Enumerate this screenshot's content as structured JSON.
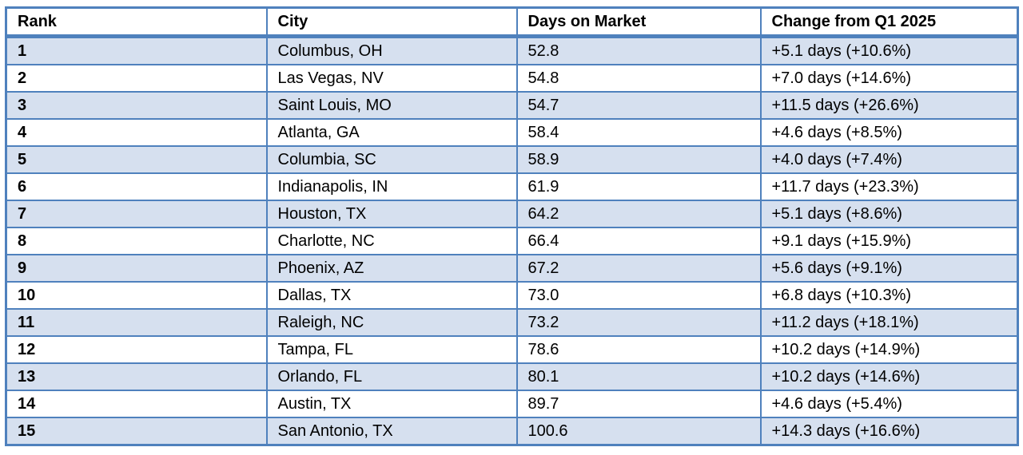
{
  "colors": {
    "table_border": "#4f81bd",
    "band_fill": "#d6e0ef",
    "header_background": "#ffffff",
    "text": "#000000"
  },
  "chart_data": {
    "type": "table",
    "columns": [
      "Rank",
      "City",
      "Days on Market",
      "Change from Q1 2025"
    ],
    "rows": [
      [
        "1",
        "Columbus, OH",
        "52.8",
        "+5.1 days (+10.6%)"
      ],
      [
        "2",
        "Las Vegas, NV",
        "54.8",
        "+7.0 days (+14.6%)"
      ],
      [
        "3",
        "Saint Louis, MO",
        "54.7",
        "+11.5 days (+26.6%)"
      ],
      [
        "4",
        "Atlanta, GA",
        "58.4",
        "+4.6 days (+8.5%)"
      ],
      [
        "5",
        "Columbia, SC",
        "58.9",
        "+4.0 days (+7.4%)"
      ],
      [
        "6",
        "Indianapolis, IN",
        "61.9",
        "+11.7 days (+23.3%)"
      ],
      [
        "7",
        "Houston, TX",
        "64.2",
        "+5.1 days (+8.6%)"
      ],
      [
        "8",
        "Charlotte, NC",
        "66.4",
        "+9.1 days (+15.9%)"
      ],
      [
        "9",
        "Phoenix, AZ",
        "67.2",
        "+5.6 days (+9.1%)"
      ],
      [
        "10",
        "Dallas, TX",
        "73.0",
        "+6.8 days (+10.3%)"
      ],
      [
        "11",
        "Raleigh, NC",
        "73.2",
        "+11.2 days (+18.1%)"
      ],
      [
        "12",
        "Tampa, FL",
        "78.6",
        "+10.2 days (+14.9%)"
      ],
      [
        "13",
        "Orlando, FL",
        "80.1",
        "+10.2 days (+14.6%)"
      ],
      [
        "14",
        "Austin, TX",
        "89.7",
        "+4.6 days (+5.4%)"
      ],
      [
        "15",
        "San Antonio, TX",
        "100.6",
        "+14.3 days (+16.6%)"
      ]
    ]
  }
}
